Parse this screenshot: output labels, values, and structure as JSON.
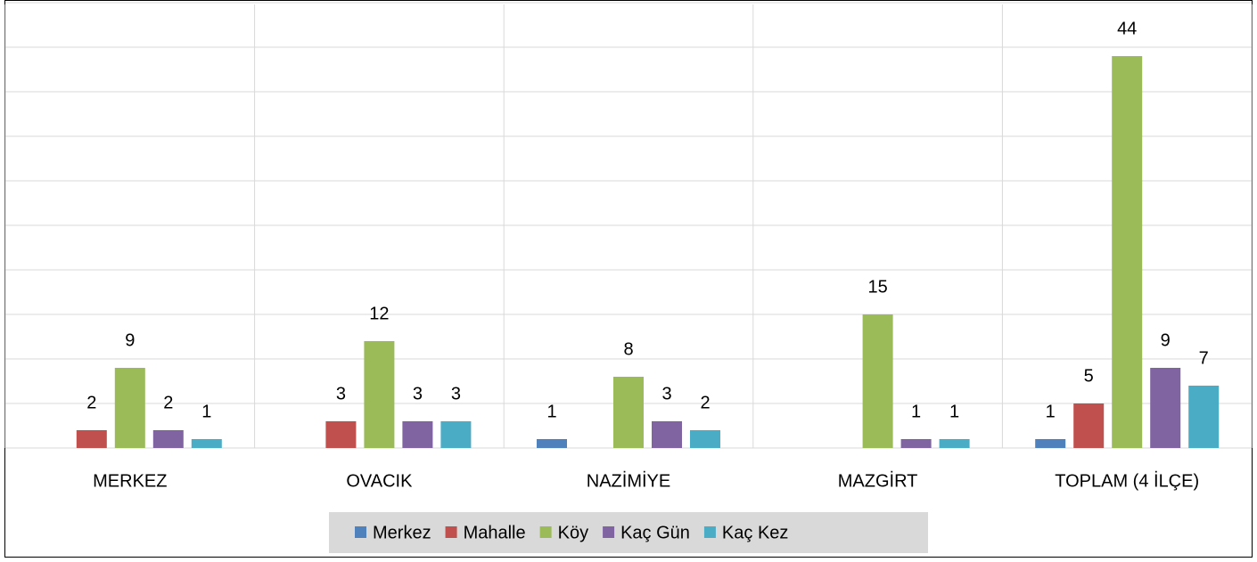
{
  "chart_data": {
    "type": "bar",
    "categories": [
      "MERKEZ",
      "OVACIK",
      "NAZİMİYE",
      "MAZGİRT",
      "TOPLAM (4 İLÇE)"
    ],
    "series": [
      {
        "name": "Merkez",
        "color": "#4f81bd",
        "values": [
          null,
          null,
          1,
          null,
          1
        ]
      },
      {
        "name": "Mahalle",
        "color": "#c0504d",
        "values": [
          2,
          3,
          null,
          null,
          5
        ]
      },
      {
        "name": "Köy",
        "color": "#9bbb59",
        "values": [
          9,
          12,
          8,
          15,
          44
        ]
      },
      {
        "name": "Kaç Gün",
        "color": "#8064a2",
        "values": [
          2,
          3,
          3,
          1,
          9
        ]
      },
      {
        "name": "Kaç Kez",
        "color": "#4bacc6",
        "values": [
          1,
          3,
          2,
          1,
          7
        ]
      }
    ],
    "ylim": [
      0,
      50
    ],
    "yticks": [
      0,
      5,
      10,
      15,
      20,
      25,
      30,
      35,
      40,
      45,
      50
    ],
    "grid": true,
    "legend": "bottom"
  }
}
